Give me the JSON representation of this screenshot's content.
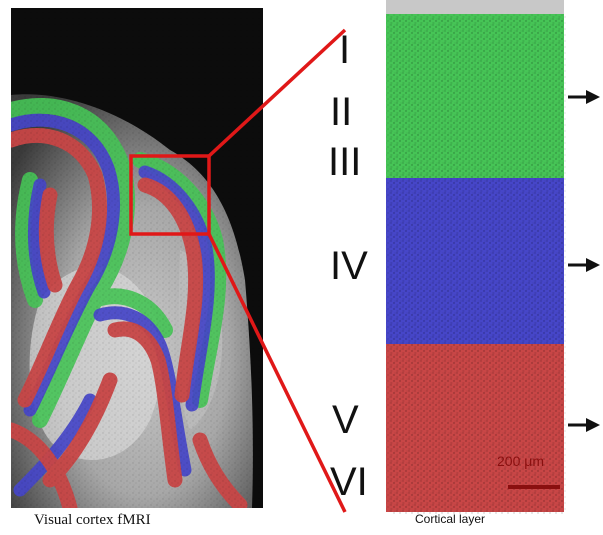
{
  "captions": {
    "left": "Visual cortex fMRI",
    "right": "Cortical layer"
  },
  "layers": [
    {
      "label": "I",
      "band": "green"
    },
    {
      "label": "II",
      "band": "green"
    },
    {
      "label": "III",
      "band": "green"
    },
    {
      "label": "IV",
      "band": "blue"
    },
    {
      "label": "V",
      "band": "red"
    },
    {
      "label": "VI",
      "band": "red"
    }
  ],
  "scale_bar": {
    "label": "200 μm"
  },
  "colors": {
    "green": "#46c456",
    "blue": "#4646c8",
    "red": "#c84646",
    "connector": "#e01818",
    "background_dark": "#0c0c0c"
  }
}
